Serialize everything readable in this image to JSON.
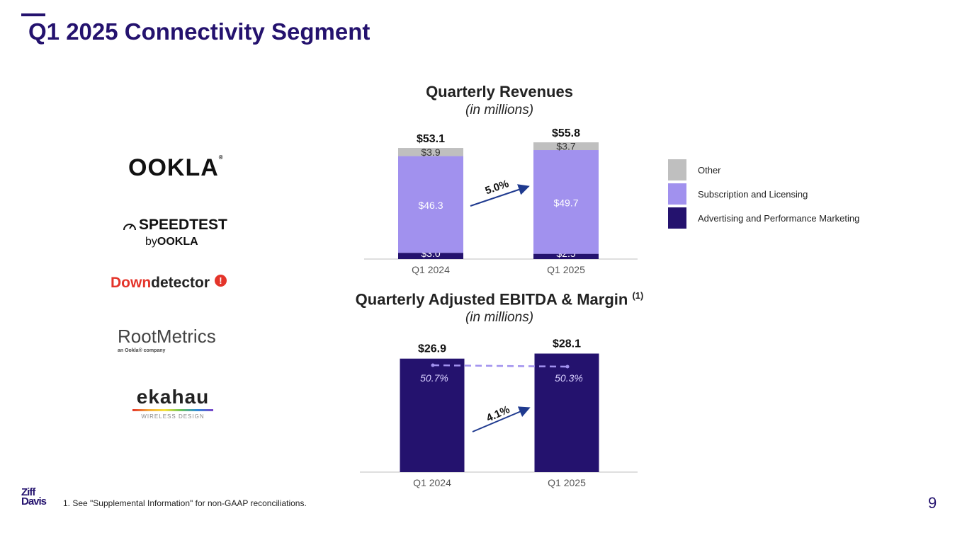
{
  "page": {
    "title": "Q1 2025 Connectivity Segment",
    "footnote": "1.  See \"Supplemental Information\" for non-GAAP reconciliations.",
    "page_number": "9",
    "company_logo_top": "Ziff",
    "company_logo_bottom": "Davis"
  },
  "logos": {
    "ookla": "OOKLA",
    "speedtest": "SPEEDTEST",
    "speedtest_by": "by",
    "speedtest_by_brand": "OOKLA",
    "downdetector_a": "Down",
    "downdetector_b": "detector",
    "downdetector_badge": "!",
    "rootmetrics": "RootMetrics",
    "rootmetrics_sub": "an Ookla® company",
    "ekahau": "ekahau",
    "ekahau_sub": "WIRELESS DESIGN"
  },
  "legend": [
    {
      "label": "Other",
      "color": "#bfbfbf"
    },
    {
      "label": "Subscription and Licensing",
      "color": "#a191ee"
    },
    {
      "label": "Advertising and Performance Marketing",
      "color": "#24126e"
    }
  ],
  "colors": {
    "brand": "#24126e",
    "subscription": "#a191ee",
    "other": "#bfbfbf",
    "arrow": "#1f3a8f",
    "margin_line": "#a191ee"
  },
  "chart_data": [
    {
      "type": "bar",
      "stacked": true,
      "title": "Quarterly Revenues",
      "subtitle": "(in millions)",
      "categories": [
        "Q1 2024",
        "Q1 2025"
      ],
      "series": [
        {
          "name": "Advertising and Performance Marketing",
          "values": [
            3.0,
            2.5
          ],
          "labels": [
            "$3.0",
            "$2.5"
          ]
        },
        {
          "name": "Subscription and Licensing",
          "values": [
            46.3,
            49.7
          ],
          "labels": [
            "$46.3",
            "$49.7"
          ]
        },
        {
          "name": "Other",
          "values": [
            3.9,
            3.7
          ],
          "labels": [
            "$3.9",
            "$3.7"
          ]
        }
      ],
      "totals": [
        53.1,
        55.8
      ],
      "total_labels": [
        "$53.1",
        "$55.8"
      ],
      "growth_label": "5.0%",
      "ylim": [
        0,
        60
      ]
    },
    {
      "type": "bar",
      "title": "Quarterly Adjusted EBITDA & Margin",
      "title_superscript": "(1)",
      "subtitle": "(in millions)",
      "categories": [
        "Q1 2024",
        "Q1 2025"
      ],
      "values": [
        26.9,
        28.1
      ],
      "value_labels": [
        "$26.9",
        "$28.1"
      ],
      "margin": [
        50.7,
        50.3
      ],
      "margin_labels": [
        "50.7%",
        "50.3%"
      ],
      "growth_label": "4.1%",
      "ylim": [
        0,
        30
      ]
    }
  ]
}
